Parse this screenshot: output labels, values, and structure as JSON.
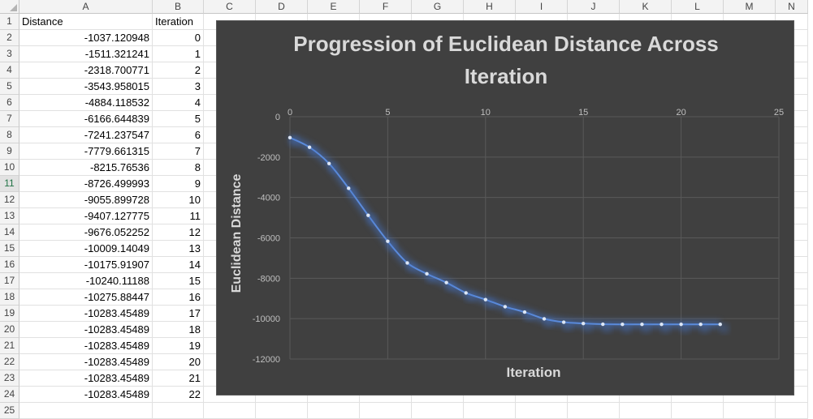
{
  "spreadsheet": {
    "columns": [
      "A",
      "B",
      "C",
      "D",
      "E",
      "F",
      "G",
      "H",
      "I",
      "J",
      "K",
      "L",
      "M",
      "N"
    ],
    "rows": [
      "1",
      "2",
      "3",
      "4",
      "5",
      "6",
      "7",
      "8",
      "9",
      "10",
      "11",
      "12",
      "13",
      "14",
      "15",
      "16",
      "17",
      "18",
      "19",
      "20",
      "21",
      "22",
      "23",
      "24",
      "25"
    ],
    "selected_row": "11",
    "header_a": "Distance",
    "header_b": "Iteration",
    "distance": [
      "-1037.120948",
      "-1511.321241",
      "-2318.700771",
      "-3543.958015",
      "-4884.118532",
      "-6166.644839",
      "-7241.237547",
      "-7779.661315",
      "-8215.76536",
      "-8726.499993",
      "-9055.899728",
      "-9407.127775",
      "-9676.052252",
      "-10009.14049",
      "-10175.91907",
      "-10240.11188",
      "-10275.88447",
      "-10283.45489",
      "-10283.45489",
      "-10283.45489",
      "-10283.45489",
      "-10283.45489",
      "-10283.45489"
    ],
    "iteration": [
      "0",
      "1",
      "2",
      "3",
      "4",
      "5",
      "6",
      "7",
      "8",
      "9",
      "10",
      "11",
      "12",
      "13",
      "14",
      "15",
      "16",
      "17",
      "18",
      "19",
      "20",
      "21",
      "22"
    ]
  },
  "chart_data": {
    "type": "line",
    "title": "Progression of Euclidean Distance Across Iteration",
    "xlabel": "Iteration",
    "ylabel": "Euclidean Distance",
    "xlim": [
      0,
      25
    ],
    "ylim": [
      -12000,
      0
    ],
    "xticks": [
      "0",
      "5",
      "10",
      "15",
      "20",
      "25"
    ],
    "yticks": [
      "0",
      "-2000",
      "-4000",
      "-6000",
      "-8000",
      "-10000",
      "-12000"
    ],
    "grid": true,
    "x": [
      0,
      1,
      2,
      3,
      4,
      5,
      6,
      7,
      8,
      9,
      10,
      11,
      12,
      13,
      14,
      15,
      16,
      17,
      18,
      19,
      20,
      21,
      22
    ],
    "y": [
      -1037.120948,
      -1511.321241,
      -2318.700771,
      -3543.958015,
      -4884.118532,
      -6166.644839,
      -7241.237547,
      -7779.661315,
      -8215.76536,
      -8726.499993,
      -9055.899728,
      -9407.127775,
      -9676.052252,
      -10009.14049,
      -10175.91907,
      -10240.11188,
      -10275.88447,
      -10283.45489,
      -10283.45489,
      -10283.45489,
      -10283.45489,
      -10283.45489,
      -10283.45489
    ],
    "colors": {
      "background": "#404040",
      "line": "#4472c4",
      "marker": "#dce6f5",
      "grid": "#595959",
      "text": "#d9d9d9"
    }
  }
}
